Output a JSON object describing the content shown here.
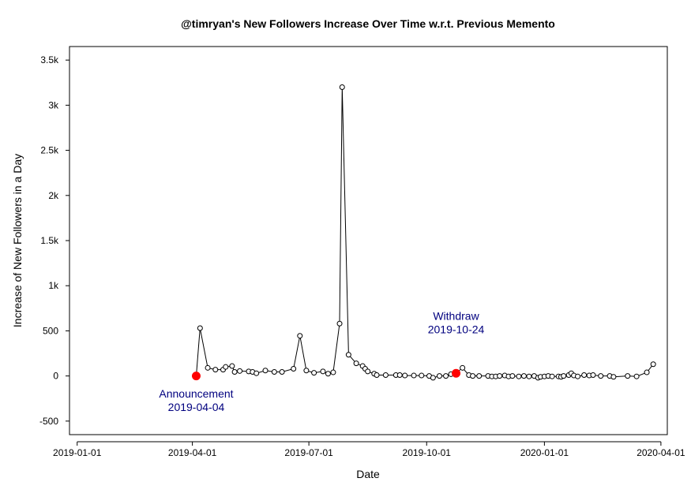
{
  "chart_data": {
    "type": "line",
    "title": "@timryan's New Followers Increase Over Time w.r.t. Previous Memento",
    "xlabel": "Date",
    "ylabel": "Increase of New Followers in a Day",
    "x_axis": {
      "type": "date",
      "range": [
        "2018-12-26",
        "2020-04-06"
      ],
      "ticks": [
        "2019-01-01",
        "2019-04-01",
        "2019-07-01",
        "2019-10-01",
        "2020-01-01",
        "2020-04-01"
      ]
    },
    "y_axis": {
      "range": [
        -650,
        3650
      ],
      "ticks": [
        -500,
        0,
        500,
        1000,
        1500,
        2000,
        2500,
        3000,
        3500
      ],
      "tick_labels": [
        "-500",
        "0",
        "500",
        "1k",
        "1.5k",
        "2k",
        "2.5k",
        "3k",
        "3.5k"
      ]
    },
    "grid": false,
    "legend": "none",
    "series": [
      {
        "color": "#000000",
        "marker": "open-circle",
        "points": [
          [
            "2019-04-04",
            0
          ],
          [
            "2019-04-07",
            530
          ],
          [
            "2019-04-13",
            90
          ],
          [
            "2019-04-19",
            70
          ],
          [
            "2019-04-25",
            70
          ],
          [
            "2019-04-27",
            100
          ],
          [
            "2019-05-02",
            110
          ],
          [
            "2019-05-04",
            45
          ],
          [
            "2019-05-08",
            55
          ],
          [
            "2019-05-15",
            50
          ],
          [
            "2019-05-18",
            45
          ],
          [
            "2019-05-21",
            30
          ],
          [
            "2019-05-28",
            60
          ],
          [
            "2019-06-04",
            45
          ],
          [
            "2019-06-10",
            45
          ],
          [
            "2019-06-19",
            80
          ],
          [
            "2019-06-24",
            445
          ],
          [
            "2019-06-29",
            60
          ],
          [
            "2019-07-05",
            35
          ],
          [
            "2019-07-12",
            50
          ],
          [
            "2019-07-16",
            25
          ],
          [
            "2019-07-20",
            40
          ],
          [
            "2019-07-25",
            580
          ],
          [
            "2019-07-27",
            3200
          ],
          [
            "2019-08-01",
            235
          ],
          [
            "2019-08-07",
            140
          ],
          [
            "2019-08-12",
            110
          ],
          [
            "2019-08-14",
            80
          ],
          [
            "2019-08-16",
            50
          ],
          [
            "2019-08-21",
            25
          ],
          [
            "2019-08-23",
            10
          ],
          [
            "2019-08-30",
            10
          ],
          [
            "2019-09-07",
            10
          ],
          [
            "2019-09-10",
            10
          ],
          [
            "2019-09-14",
            5
          ],
          [
            "2019-09-21",
            5
          ],
          [
            "2019-09-27",
            5
          ],
          [
            "2019-10-03",
            0
          ],
          [
            "2019-10-06",
            -20
          ],
          [
            "2019-10-11",
            0
          ],
          [
            "2019-10-16",
            0
          ],
          [
            "2019-10-20",
            20
          ],
          [
            "2019-10-24",
            30
          ],
          [
            "2019-10-29",
            90
          ],
          [
            "2019-11-03",
            10
          ],
          [
            "2019-11-06",
            0
          ],
          [
            "2019-11-11",
            0
          ],
          [
            "2019-11-18",
            0
          ],
          [
            "2019-11-21",
            -5
          ],
          [
            "2019-11-24",
            -5
          ],
          [
            "2019-11-27",
            0
          ],
          [
            "2019-12-01",
            5
          ],
          [
            "2019-12-04",
            -5
          ],
          [
            "2019-12-07",
            0
          ],
          [
            "2019-12-12",
            -5
          ],
          [
            "2019-12-16",
            0
          ],
          [
            "2019-12-20",
            -5
          ],
          [
            "2019-12-24",
            0
          ],
          [
            "2019-12-27",
            -20
          ],
          [
            "2019-12-29",
            -10
          ],
          [
            "2020-01-01",
            -5
          ],
          [
            "2020-01-04",
            0
          ],
          [
            "2020-01-07",
            -5
          ],
          [
            "2020-01-12",
            -5
          ],
          [
            "2020-01-14",
            -10
          ],
          [
            "2020-01-16",
            0
          ],
          [
            "2020-01-20",
            10
          ],
          [
            "2020-01-22",
            30
          ],
          [
            "2020-01-24",
            5
          ],
          [
            "2020-01-27",
            -5
          ],
          [
            "2020-02-01",
            10
          ],
          [
            "2020-02-05",
            5
          ],
          [
            "2020-02-08",
            10
          ],
          [
            "2020-02-14",
            0
          ],
          [
            "2020-02-21",
            0
          ],
          [
            "2020-02-24",
            -10
          ],
          [
            "2020-03-06",
            0
          ],
          [
            "2020-03-13",
            -5
          ],
          [
            "2020-03-21",
            40
          ],
          [
            "2020-03-26",
            130
          ]
        ]
      }
    ],
    "highlight_points": [
      {
        "date": "2019-04-04",
        "value": 0,
        "color": "#ff0000"
      },
      {
        "date": "2019-10-24",
        "value": 30,
        "color": "#ff0000"
      }
    ],
    "annotations": [
      {
        "lines": [
          "Announcement",
          "2019-04-04"
        ],
        "date": "2019-04-04",
        "value": -240,
        "color": "#00007f"
      },
      {
        "lines": [
          "Withdraw",
          "2019-10-24"
        ],
        "date": "2019-10-24",
        "value": 620,
        "color": "#00007f"
      }
    ]
  }
}
